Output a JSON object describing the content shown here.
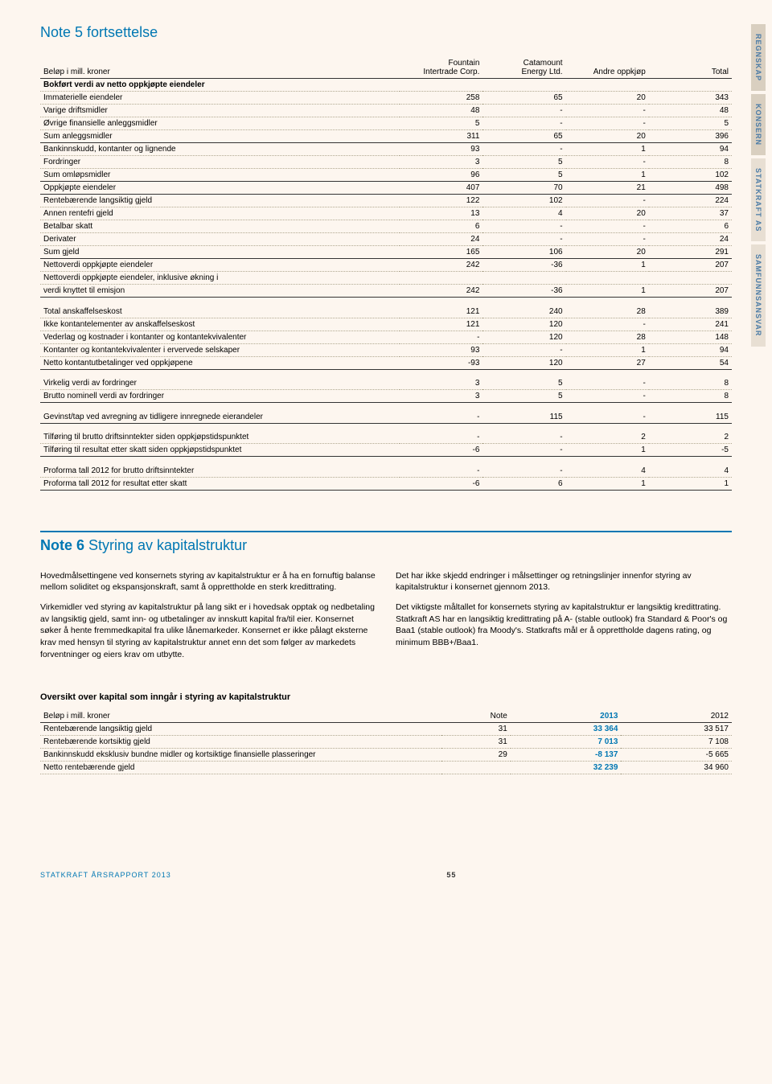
{
  "sideTabs": [
    "REGNSKAP",
    "KONSERN",
    "STATKRAFT AS",
    "SAMFUNNSANSVAR"
  ],
  "note5": {
    "title_prefix": "Note 5",
    "title_rest": " fortsettelse",
    "header": {
      "c0": "Beløp i mill. kroner",
      "c1a": "Fountain",
      "c1b": "Intertrade Corp.",
      "c2a": "Catamount",
      "c2b": "Energy Ltd.",
      "c3": "Andre oppkjøp",
      "c4": "Total"
    },
    "sectionHead": "Bokført verdi av netto oppkjøpte eiendeler",
    "rows1": [
      {
        "l": "Immaterielle eiendeler",
        "v": [
          "258",
          "65",
          "20",
          "343"
        ]
      },
      {
        "l": "Varige driftsmidler",
        "v": [
          "48",
          "-",
          "-",
          "48"
        ]
      },
      {
        "l": "Øvrige finansielle anleggsmidler",
        "v": [
          "5",
          "-",
          "-",
          "5"
        ]
      },
      {
        "l": "Sum anleggsmidler",
        "v": [
          "311",
          "65",
          "20",
          "396"
        ],
        "solid": true
      },
      {
        "l": "Bankinnskudd, kontanter og lignende",
        "v": [
          "93",
          "-",
          "1",
          "94"
        ]
      },
      {
        "l": "Fordringer",
        "v": [
          "3",
          "5",
          "-",
          "8"
        ]
      },
      {
        "l": "Sum omløpsmidler",
        "v": [
          "96",
          "5",
          "1",
          "102"
        ],
        "solid": true
      },
      {
        "l": "Oppkjøpte eiendeler",
        "v": [
          "407",
          "70",
          "21",
          "498"
        ],
        "solid": true
      },
      {
        "l": "Rentebærende langsiktig gjeld",
        "v": [
          "122",
          "102",
          "-",
          "224"
        ]
      },
      {
        "l": "Annen rentefri gjeld",
        "v": [
          "13",
          "4",
          "20",
          "37"
        ]
      },
      {
        "l": "Betalbar skatt",
        "v": [
          "6",
          "-",
          "-",
          "6"
        ]
      },
      {
        "l": "Derivater",
        "v": [
          "24",
          "-",
          "-",
          "24"
        ]
      },
      {
        "l": "Sum gjeld",
        "v": [
          "165",
          "106",
          "20",
          "291"
        ],
        "solid": true
      },
      {
        "l": "Nettoverdi oppkjøpte eiendeler",
        "v": [
          "242",
          "-36",
          "1",
          "207"
        ]
      },
      {
        "l": "Nettoverdi oppkjøpte eiendeler, inklusive økning i",
        "v": [
          "",
          "",
          "",
          ""
        ]
      },
      {
        "l": "verdi knyttet til emisjon",
        "v": [
          "242",
          "-36",
          "1",
          "207"
        ],
        "solid": true
      }
    ],
    "rows2": [
      {
        "l": "Total anskaffelseskost",
        "v": [
          "121",
          "240",
          "28",
          "389"
        ]
      },
      {
        "l": "Ikke kontantelementer av anskaffelseskost",
        "v": [
          "121",
          "120",
          "-",
          "241"
        ]
      },
      {
        "l": "Vederlag og kostnader i kontanter og kontantekvivalenter",
        "v": [
          "-",
          "120",
          "28",
          "148"
        ]
      },
      {
        "l": "Kontanter og kontantekvivalenter i ervervede selskaper",
        "v": [
          "93",
          "-",
          "1",
          "94"
        ]
      },
      {
        "l": "Netto kontantutbetalinger ved oppkjøpene",
        "v": [
          "-93",
          "120",
          "27",
          "54"
        ],
        "solid": true
      }
    ],
    "rows3": [
      {
        "l": "Virkelig verdi av fordringer",
        "v": [
          "3",
          "5",
          "-",
          "8"
        ]
      },
      {
        "l": "Brutto nominell verdi av fordringer",
        "v": [
          "3",
          "5",
          "-",
          "8"
        ],
        "solid": true
      }
    ],
    "rows4": [
      {
        "l": "Gevinst/tap ved avregning av tidligere innregnede eierandeler",
        "v": [
          "-",
          "115",
          "-",
          "115"
        ],
        "solid": true
      }
    ],
    "rows5": [
      {
        "l": "Tilføring til brutto driftsinntekter siden oppkjøpstidspunktet",
        "v": [
          "-",
          "-",
          "2",
          "2"
        ]
      },
      {
        "l": "Tilføring til resultat etter skatt siden oppkjøpstidspunktet",
        "v": [
          "-6",
          "-",
          "1",
          "-5"
        ],
        "solid": true
      }
    ],
    "rows6": [
      {
        "l": "Proforma tall 2012 for brutto driftsinntekter",
        "v": [
          "-",
          "-",
          "4",
          "4"
        ]
      },
      {
        "l": "Proforma tall 2012 for resultat etter skatt",
        "v": [
          "-6",
          "6",
          "1",
          "1"
        ],
        "solid": true
      }
    ]
  },
  "note6": {
    "title_prefix": "Note 6",
    "title_rest": "  Styring av kapitalstruktur",
    "left": [
      "Hovedmålsettingene ved konsernets styring av kapitalstruktur er å ha en fornuftig balanse mellom soliditet og ekspansjonskraft, samt å opprettholde en sterk kredittrating.",
      "Virkemidler ved styring av kapitalstruktur på lang sikt er i hovedsak opptak og nedbetaling av langsiktig gjeld, samt inn- og utbetalinger av innskutt kapital fra/til eier. Konsernet søker å hente fremmedkapital fra ulike lånemarkeder. Konsernet er ikke pålagt eksterne krav med hensyn til styring av kapitalstruktur annet enn det som følger av markedets forventninger og eiers krav om utbytte."
    ],
    "right": [
      "Det har ikke skjedd endringer i målsettinger og retningslinjer innenfor styring av kapitalstruktur i konsernet gjennom 2013.",
      "Det viktigste måltallet for konsernets styring av kapitalstruktur er langsiktig kredittrating. Statkraft AS har en langsiktig kredittrating på A- (stable outlook) fra Standard & Poor's og Baa1 (stable outlook) fra Moody's. Statkrafts mål er å opprettholde dagens rating, og minimum BBB+/Baa1."
    ],
    "subHead": "Oversikt over kapital som inngår i styring av kapitalstruktur",
    "capHeader": {
      "c0": "Beløp i mill. kroner",
      "c1": "Note",
      "c2": "2013",
      "c3": "2012"
    },
    "capRows": [
      {
        "l": "Rentebærende langsiktig gjeld",
        "n": "31",
        "a": "33 364",
        "b": "33 517"
      },
      {
        "l": "Rentebærende kortsiktig gjeld",
        "n": "31",
        "a": "7 013",
        "b": "7 108"
      },
      {
        "l": "Bankinnskudd eksklusiv bundne midler og kortsiktige finansielle plasseringer",
        "n": "29",
        "a": "-8 137",
        "b": "-5 665"
      },
      {
        "l": "Netto rentebærende gjeld",
        "n": "",
        "a": "32 239",
        "b": "34 960",
        "solid": true
      }
    ]
  },
  "footer": {
    "left": "STATKRAFT ÅRSRAPPORT 2013",
    "page": "55"
  }
}
